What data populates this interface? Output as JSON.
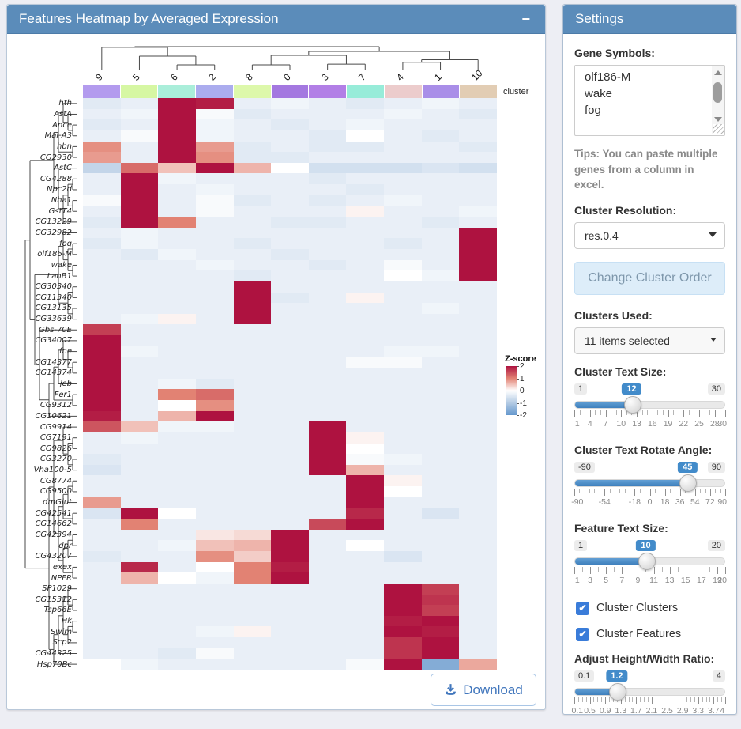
{
  "main_panel": {
    "title": "Features Heatmap by Averaged Expression",
    "collapse_icon": "−",
    "download_label": "Download"
  },
  "heatmap": {
    "cluster_label": "cluster",
    "columns": [
      "9",
      "5",
      "6",
      "2",
      "8",
      "0",
      "3",
      "7",
      "4",
      "1",
      "10"
    ],
    "column_colors": [
      "#b39bee",
      "#d6f7a3",
      "#aaeeda",
      "#abacee",
      "#ddf8ab",
      "#a478e0",
      "#b27fe6",
      "#97ecd9",
      "#eccccc",
      "#a98ee8",
      "#e2cdb4"
    ],
    "legend": {
      "title": "Z-score",
      "ticks": [
        "2",
        "1",
        "0",
        "-1",
        "-2"
      ]
    },
    "scale_colors": {
      "pos2": "#ae1240",
      "pos1": "#e28273",
      "zero": "#ffffff",
      "neg1": "#b4cbe4",
      "neg2": "#6497cd"
    },
    "genes": [
      "hth",
      "AstA",
      "Ance",
      "Mal-A3",
      "hbn",
      "CG2930",
      "AstC",
      "CG4288",
      "Npc2d",
      "Nha1",
      "GstT4",
      "CG13229",
      "CG32982",
      "fog",
      "olf186-M",
      "wake",
      "LanB1",
      "CG30340",
      "CG11340",
      "CG13135",
      "CG33639",
      "Gbs-70E",
      "CG34007",
      "fne",
      "CG14377",
      "CG14374",
      "jeb",
      "Fer1",
      "CG9312",
      "CG10621",
      "CG9914",
      "CG7191",
      "CG9826",
      "CG3270",
      "Vha100-5",
      "CG8774",
      "CG9500",
      "dmGlut",
      "CG42541",
      "CG14662",
      "CG42394",
      "dpr",
      "CG43207",
      "exex",
      "NPFR",
      "SP1029",
      "CG15312",
      "Tsp66E",
      "Hk",
      "Swim",
      "Scp2",
      "CG44325",
      "Hsp70Bc"
    ],
    "values": [
      [
        -0.4,
        -0.3,
        2.0,
        1.9,
        -0.3,
        -0.2,
        -0.3,
        -0.4,
        -0.3,
        -0.2,
        -0.3
      ],
      [
        -0.3,
        -0.2,
        2.0,
        -0.1,
        -0.4,
        -0.3,
        -0.3,
        -0.3,
        -0.2,
        -0.3,
        -0.4
      ],
      [
        -0.4,
        -0.3,
        2.0,
        -0.2,
        -0.3,
        -0.4,
        -0.3,
        -0.2,
        -0.3,
        -0.3,
        -0.3
      ],
      [
        -0.3,
        -0.1,
        2.0,
        -0.2,
        -0.3,
        -0.3,
        -0.4,
        0.0,
        -0.3,
        -0.4,
        -0.3
      ],
      [
        0.9,
        -0.3,
        2.0,
        0.8,
        -0.4,
        -0.3,
        -0.4,
        -0.4,
        -0.3,
        -0.3,
        -0.4
      ],
      [
        0.8,
        -0.3,
        2.0,
        0.9,
        -0.4,
        -0.4,
        -0.3,
        -0.3,
        -0.3,
        -0.3,
        -0.3
      ],
      [
        -0.8,
        1.2,
        0.5,
        2.0,
        0.6,
        0.0,
        -0.6,
        -0.6,
        -0.6,
        -0.5,
        -0.6
      ],
      [
        -0.3,
        2.0,
        -0.2,
        -0.3,
        -0.3,
        -0.3,
        -0.4,
        -0.3,
        -0.3,
        -0.3,
        -0.3
      ],
      [
        -0.3,
        2.0,
        -0.3,
        -0.2,
        -0.3,
        -0.3,
        -0.3,
        -0.4,
        -0.3,
        -0.3,
        -0.3
      ],
      [
        -0.1,
        2.0,
        -0.3,
        -0.1,
        -0.4,
        -0.3,
        -0.4,
        -0.3,
        -0.2,
        -0.3,
        -0.3
      ],
      [
        -0.3,
        2.0,
        -0.3,
        -0.1,
        -0.3,
        -0.3,
        -0.3,
        0.1,
        -0.3,
        -0.3,
        -0.2
      ],
      [
        -0.4,
        2.0,
        1.0,
        -0.3,
        -0.3,
        -0.4,
        -0.4,
        -0.3,
        -0.3,
        -0.4,
        -0.3
      ],
      [
        -0.3,
        -0.2,
        -0.3,
        -0.3,
        -0.3,
        -0.3,
        -0.3,
        -0.3,
        -0.3,
        -0.3,
        2.0
      ],
      [
        -0.4,
        -0.2,
        -0.3,
        -0.3,
        -0.4,
        -0.3,
        -0.3,
        -0.3,
        -0.4,
        -0.3,
        2.0
      ],
      [
        -0.3,
        -0.4,
        -0.2,
        -0.3,
        -0.3,
        -0.4,
        -0.3,
        -0.3,
        -0.3,
        -0.3,
        2.0
      ],
      [
        -0.3,
        -0.3,
        -0.3,
        -0.2,
        -0.3,
        -0.3,
        -0.4,
        -0.3,
        -0.1,
        -0.3,
        2.0
      ],
      [
        -0.3,
        -0.3,
        -0.3,
        -0.3,
        -0.4,
        -0.3,
        -0.3,
        -0.3,
        0.0,
        -0.2,
        2.0
      ],
      [
        -0.3,
        -0.3,
        -0.3,
        -0.3,
        2.0,
        -0.3,
        -0.3,
        -0.3,
        -0.3,
        -0.3,
        -0.3
      ],
      [
        -0.3,
        -0.3,
        -0.3,
        -0.3,
        2.0,
        -0.4,
        -0.3,
        0.1,
        -0.3,
        -0.3,
        -0.3
      ],
      [
        -0.3,
        -0.3,
        -0.3,
        -0.3,
        2.0,
        -0.3,
        -0.3,
        -0.3,
        -0.3,
        -0.2,
        -0.3
      ],
      [
        -0.3,
        -0.2,
        0.1,
        -0.3,
        2.0,
        -0.3,
        -0.3,
        -0.3,
        -0.3,
        -0.3,
        -0.3
      ],
      [
        1.6,
        -0.3,
        -0.3,
        -0.3,
        -0.3,
        -0.3,
        -0.3,
        -0.3,
        -0.3,
        -0.3,
        -0.3
      ],
      [
        2.0,
        -0.3,
        -0.3,
        -0.3,
        -0.3,
        -0.3,
        -0.3,
        -0.3,
        -0.3,
        -0.3,
        -0.3
      ],
      [
        2.0,
        -0.2,
        -0.3,
        -0.3,
        -0.3,
        -0.3,
        -0.3,
        -0.3,
        -0.2,
        -0.2,
        -0.3
      ],
      [
        2.0,
        -0.3,
        -0.3,
        -0.3,
        -0.3,
        -0.3,
        -0.3,
        -0.1,
        -0.1,
        -0.3,
        -0.3
      ],
      [
        2.0,
        -0.3,
        -0.3,
        -0.3,
        -0.3,
        -0.3,
        -0.3,
        -0.3,
        -0.3,
        -0.3,
        -0.3
      ],
      [
        2.0,
        -0.3,
        -0.2,
        -0.4,
        -0.3,
        -0.3,
        -0.3,
        -0.3,
        -0.3,
        -0.3,
        -0.3
      ],
      [
        2.0,
        -0.3,
        1.0,
        1.2,
        -0.3,
        -0.3,
        -0.3,
        -0.3,
        -0.3,
        -0.3,
        -0.3
      ],
      [
        2.0,
        -0.3,
        0.0,
        0.9,
        -0.3,
        -0.3,
        -0.3,
        -0.3,
        -0.3,
        -0.3,
        -0.3
      ],
      [
        1.9,
        -0.3,
        0.6,
        2.0,
        -0.3,
        -0.3,
        -0.3,
        -0.3,
        -0.3,
        -0.3,
        -0.3
      ],
      [
        1.4,
        0.5,
        -0.2,
        -0.2,
        -0.3,
        -0.3,
        2.0,
        -0.3,
        -0.3,
        -0.3,
        -0.3
      ],
      [
        -0.3,
        -0.2,
        -0.3,
        -0.3,
        -0.3,
        -0.3,
        2.0,
        0.1,
        -0.3,
        -0.3,
        -0.3
      ],
      [
        -0.3,
        -0.3,
        -0.3,
        -0.3,
        -0.3,
        -0.3,
        2.0,
        0.0,
        -0.3,
        -0.3,
        -0.3
      ],
      [
        -0.4,
        -0.3,
        -0.3,
        -0.3,
        -0.3,
        -0.3,
        2.0,
        -0.1,
        -0.2,
        -0.3,
        -0.3
      ],
      [
        -0.5,
        -0.3,
        -0.3,
        -0.3,
        -0.3,
        -0.3,
        2.0,
        0.6,
        -0.3,
        -0.3,
        -0.3
      ],
      [
        -0.3,
        -0.3,
        -0.3,
        -0.3,
        -0.3,
        -0.3,
        -0.3,
        2.0,
        0.1,
        -0.3,
        -0.3
      ],
      [
        -0.3,
        -0.3,
        -0.3,
        -0.3,
        -0.3,
        -0.3,
        -0.3,
        2.0,
        0.0,
        -0.3,
        -0.3
      ],
      [
        0.8,
        -0.3,
        -0.3,
        -0.3,
        -0.3,
        -0.3,
        -0.3,
        2.0,
        -0.3,
        -0.3,
        -0.3
      ],
      [
        -0.5,
        2.0,
        0.0,
        -0.3,
        -0.3,
        -0.3,
        -0.3,
        1.8,
        -0.3,
        -0.5,
        -0.3
      ],
      [
        -0.3,
        1.0,
        -0.3,
        -0.3,
        -0.3,
        -0.3,
        1.5,
        2.0,
        -0.3,
        -0.3,
        -0.3
      ],
      [
        -0.3,
        -0.3,
        -0.3,
        0.2,
        0.3,
        2.0,
        -0.3,
        -0.3,
        -0.3,
        -0.3,
        -0.3
      ],
      [
        -0.3,
        -0.3,
        -0.2,
        0.5,
        0.6,
        2.0,
        -0.3,
        0.0,
        -0.3,
        -0.3,
        -0.3
      ],
      [
        -0.4,
        -0.3,
        -0.3,
        0.9,
        0.4,
        2.0,
        -0.3,
        -0.3,
        -0.5,
        -0.3,
        -0.3
      ],
      [
        -0.3,
        1.8,
        -0.3,
        0.0,
        1.0,
        1.9,
        -0.3,
        -0.3,
        -0.3,
        -0.3,
        -0.3
      ],
      [
        -0.3,
        0.6,
        0.0,
        -0.2,
        1.0,
        2.0,
        -0.3,
        -0.3,
        -0.3,
        -0.3,
        -0.3
      ],
      [
        -0.3,
        -0.3,
        -0.3,
        -0.3,
        -0.3,
        -0.3,
        -0.3,
        -0.3,
        2.0,
        1.6,
        -0.3
      ],
      [
        -0.3,
        -0.3,
        -0.3,
        -0.3,
        -0.3,
        -0.3,
        -0.3,
        -0.3,
        2.0,
        1.7,
        -0.3
      ],
      [
        -0.3,
        -0.3,
        -0.3,
        -0.3,
        -0.3,
        -0.3,
        -0.3,
        -0.3,
        2.0,
        1.6,
        -0.3
      ],
      [
        -0.3,
        -0.3,
        -0.3,
        -0.3,
        -0.3,
        -0.3,
        -0.3,
        -0.3,
        1.9,
        2.0,
        -0.3
      ],
      [
        -0.3,
        -0.3,
        -0.3,
        -0.2,
        0.1,
        -0.3,
        -0.3,
        -0.3,
        2.0,
        1.9,
        -0.3
      ],
      [
        -0.3,
        -0.3,
        -0.3,
        -0.3,
        -0.3,
        -0.3,
        -0.3,
        -0.3,
        1.7,
        2.0,
        -0.3
      ],
      [
        -0.3,
        -0.3,
        -0.4,
        -0.1,
        -0.3,
        -0.3,
        -0.3,
        -0.3,
        1.7,
        2.0,
        -0.3
      ],
      [
        0.0,
        -0.2,
        -0.3,
        -0.3,
        -0.3,
        -0.3,
        -0.3,
        -0.1,
        2.0,
        -1.6,
        0.7
      ]
    ],
    "col_tree": {
      "h": 10,
      "c": [
        {
          "h": 9.8,
          "c": [
            "9",
            {
              "h": 7.4,
              "c": [
                "5",
                {
                  "h": 5,
                  "c": [
                    "6",
                    "2"
                  ]
                }
              ]
            }
          ]
        },
        {
          "h": 8.7,
          "c": [
            {
              "h": 7.6,
              "c": [
                {
                  "h": 5,
                  "c": [
                    "8",
                    "0"
                  ]
                },
                {
                  "h": 5.2,
                  "c": [
                    "3",
                    "7"
                  ]
                }
              ]
            },
            {
              "h": 6.4,
              "c": [
                {
                  "h": 5.7,
                  "c": [
                    "4",
                    "1"
                  ]
                },
                "10"
              ]
            }
          ]
        }
      ]
    },
    "row_tree": [
      [
        [
          [
            [
              "hth",
              [
                "AstA",
                [
                  "Ance",
                  "Mal-A3"
                ]
              ]
            ],
            [
              "hbn",
              "CG2930"
            ]
          ],
          [
            "AstC",
            [
              [
                [
                  "CG4288",
                  "Npc2d"
                ],
                [
                  "Nha1",
                  "GstT4"
                ]
              ],
              "CG13229"
            ]
          ]
        ],
        [
          [
            [
              "CG32982",
              [
                [
                  "fog",
                  "olf186-M"
                ],
                [
                  "wake",
                  "LanB1"
                ]
              ]
            ],
            [
              [
                "CG30340",
                "CG11340"
              ],
              [
                "CG13135",
                "CG33639"
              ]
            ]
          ],
          [
            "Gbs-70E",
            [
              [
                [
                  [
                    [
                      "CG34007",
                      [
                        "fne",
                        [
                          "CG14377",
                          "CG14374"
                        ]
                      ]
                    ],
                    "jeb"
                  ],
                  [
                    "Fer1",
                    "CG9312"
                  ]
                ],
                "CG10621"
              ]
            ]
          ]
        ]
      ],
      [
        [
          [
            "CG9914",
            [
              [
                "CG7191",
                "CG9826"
              ],
              [
                "CG3270",
                "Vha100-5"
              ]
            ]
          ],
          [
            [
              [
                [
                  "CG8774",
                  "CG9500"
                ],
                "dmGlut"
              ],
              [
                "CG42541",
                "CG14662"
              ]
            ],
            [
              [
                [
                  "CG42394",
                  "dpr"
                ],
                "CG43207"
              ],
              [
                "exex",
                "NPFR"
              ]
            ]
          ]
        ],
        [
          [
            [
              [
                "SP1029",
                [
                  "CG15312",
                  "Tsp66E"
                ]
              ],
              [
                [
                  "Hk",
                  "Swim"
                ],
                "Scp2"
              ]
            ],
            "CG44325"
          ],
          "Hsp70Bc"
        ]
      ]
    ]
  },
  "settings": {
    "title": "Settings",
    "gene_symbols_label": "Gene Symbols:",
    "gene_symbols_value": [
      "olf186-M",
      "wake",
      "fog"
    ],
    "tips": "Tips: You can paste multiple genes from a column in excel.",
    "cluster_resolution_label": "Cluster Resolution:",
    "cluster_resolution_value": "res.0.4",
    "change_order_label": "Change Cluster Order",
    "clusters_used_label": "Clusters Used:",
    "clusters_used_value": "11 items selected",
    "sliders": [
      {
        "label": "Cluster Text Size:",
        "min": "1",
        "max": "30",
        "value": "12",
        "step": 1,
        "ticks": [
          "1",
          "4",
          "7",
          "10",
          "13",
          "16",
          "19",
          "22",
          "25",
          "28",
          "30"
        ]
      },
      {
        "label": "Cluster Text Rotate Angle:",
        "min": "-90",
        "max": "90",
        "value": "45",
        "step": 6,
        "ticks": [
          "-90",
          "-54",
          "-18",
          "0",
          "18",
          "36",
          "54",
          "72",
          "90"
        ]
      },
      {
        "label": "Feature Text Size:",
        "min": "1",
        "max": "20",
        "value": "10",
        "step": 1,
        "ticks": [
          "1",
          "3",
          "5",
          "7",
          "9",
          "11",
          "13",
          "15",
          "17",
          "19",
          "20"
        ]
      },
      {
        "label": "Adjust Height/Width Ratio:",
        "min": "0.1",
        "max": "4",
        "value": "1.2",
        "step": 0.1,
        "ticks": [
          "0.1",
          "0.5",
          "0.9",
          "1.3",
          "1.7",
          "2.1",
          "2.5",
          "2.9",
          "3.3",
          "3.7",
          "4"
        ]
      }
    ],
    "checkboxes": [
      {
        "label": "Cluster Clusters",
        "checked": true
      },
      {
        "label": "Cluster Features",
        "checked": true
      }
    ]
  }
}
